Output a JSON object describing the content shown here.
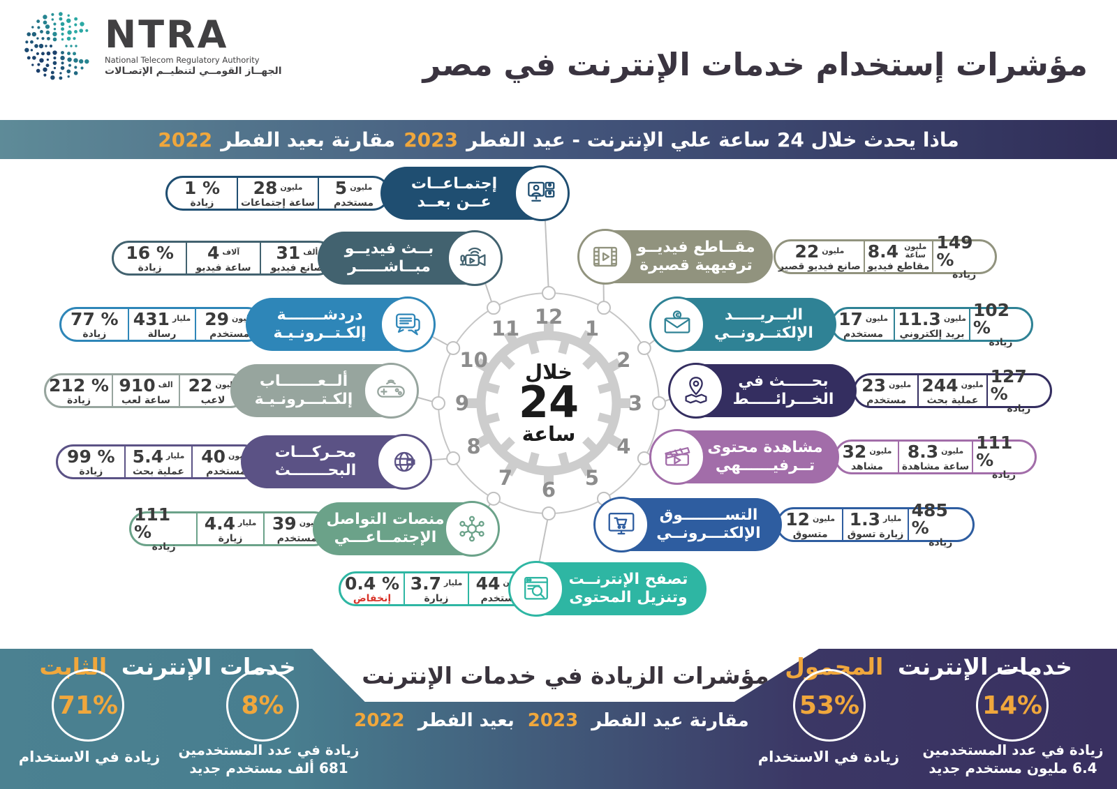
{
  "logo": {
    "name": "NTRA",
    "subtitle_en": "National Telecom Regulatory Authority",
    "subtitle_ar": "الجهــاز القومــي لتنظيــم الإتصـالات"
  },
  "header": {
    "title": "مؤشرات إستخدام خدمات الإنترنت في مصر"
  },
  "banner": {
    "text_part1": "ماذا يحدث خلال 24 ساعة علي الإنترنت - عيد الفطر",
    "year_2023": "2023",
    "text_part2": "مقارنة بعيد الفطر",
    "year_2022": "2022"
  },
  "clock": {
    "label_top": "خلال",
    "label_value": "24",
    "label_bottom": "ساعة",
    "hours": [
      "1",
      "2",
      "3",
      "4",
      "5",
      "6",
      "7",
      "8",
      "9",
      "10",
      "11",
      "12"
    ]
  },
  "colors": {
    "accent_orange": "#f0a73c",
    "decrease_red": "#d8342a",
    "line_gray": "#c0c0c0",
    "banner_gradient": [
      "#5e8b98",
      "#302d58"
    ],
    "footer_gradient": [
      "#4b8191",
      "#393060"
    ]
  },
  "services": [
    {
      "id": "remote-meetings",
      "icon": "video-conference-icon",
      "color": "#1f4e71",
      "label_line1": "إجتمـاعــات",
      "label_line2": "عــن بعــد",
      "stats": [
        {
          "value": "5",
          "unit": "مليون",
          "label": "مستخدم"
        },
        {
          "value": "28",
          "unit": "مليون",
          "label": "ساعة إجتماعات"
        },
        {
          "value": "1 %",
          "label": "زيادة"
        }
      ]
    },
    {
      "id": "live-video-streaming",
      "icon": "live-stream-icon",
      "color": "#42626f",
      "label_line1": "بــث فيديــو",
      "label_line2": "مبــاشـــــر",
      "stats": [
        {
          "value": "31",
          "unit": "ألف",
          "label": "صانع فيديو"
        },
        {
          "value": "4",
          "unit": "آلاف",
          "label": "ساعة فيديو"
        },
        {
          "value": "16 %",
          "label": "زيادة"
        }
      ]
    },
    {
      "id": "online-chat",
      "icon": "chat-icon",
      "color": "#2e86b8",
      "label_line1": "دردشـــــــة",
      "label_line2": "إلكـتــرونـيـة",
      "stats": [
        {
          "value": "29",
          "unit": "مليون",
          "label": "مستخدم"
        },
        {
          "value": "431",
          "unit": "مليار",
          "label": "رسالة"
        },
        {
          "value": "77 %",
          "label": "زيادة"
        }
      ]
    },
    {
      "id": "online-games",
      "icon": "gamepad-icon",
      "color": "#97a59e",
      "label_line1": "ألــعـــــــاب",
      "label_line2": "إلكـتـــرونـيـة",
      "stats": [
        {
          "value": "22",
          "unit": "مليون",
          "label": "لاعب"
        },
        {
          "value": "910",
          "unit": "الف",
          "label": "ساعة لعب"
        },
        {
          "value": "212 %",
          "label": "زيادة"
        }
      ]
    },
    {
      "id": "search-engines",
      "icon": "globe-search-icon",
      "color": "#5b5285",
      "label_line1": "محـركـــات",
      "label_line2": "البحـــــــث",
      "stats": [
        {
          "value": "40",
          "unit": "مليون",
          "label": "مستخدم"
        },
        {
          "value": "5.4",
          "unit": "مليار",
          "label": "عملية بحث"
        },
        {
          "value": "99 %",
          "label": "زيادة"
        }
      ]
    },
    {
      "id": "social-media",
      "icon": "social-network-icon",
      "color": "#6ba289",
      "label_line1": "منصات التواصل",
      "label_line2": "الإجتمــاعـــي",
      "stats": [
        {
          "value": "39",
          "unit": "مليون",
          "label": "مستخدم"
        },
        {
          "value": "4.4",
          "unit": "مليار",
          "label": "زيارة"
        },
        {
          "value": "111 %",
          "label": "زيادة"
        }
      ]
    },
    {
      "id": "short-videos",
      "icon": "film-strip-icon",
      "color": "#91937e",
      "label_line1": "مقــاطع فيديــو",
      "label_line2": "ترفيهية قصيرة",
      "stats": [
        {
          "value": "22",
          "unit": "مليون",
          "label": "صانع فيديو قصير"
        },
        {
          "value": "8.4",
          "unit": "مليون ساعة",
          "label": "مقاطع فيديو"
        },
        {
          "value": "149 %",
          "label": "زيادة"
        }
      ]
    },
    {
      "id": "email",
      "icon": "email-icon",
      "color": "#2f8295",
      "label_line1": "البــريـــــد",
      "label_line2": "الإلكتــرونــي",
      "stats": [
        {
          "value": "17",
          "unit": "مليون",
          "label": "مستخدم"
        },
        {
          "value": "11.3",
          "unit": "مليون",
          "label": "بريد إلكتروني"
        },
        {
          "value": "102 %",
          "label": "زيادة"
        }
      ]
    },
    {
      "id": "maps-search",
      "icon": "map-pin-icon",
      "color": "#342e60",
      "label_line1": "بحـــــث في",
      "label_line2": "الخـــرائـــــط",
      "stats": [
        {
          "value": "23",
          "unit": "مليون",
          "label": "مستخدم"
        },
        {
          "value": "244",
          "unit": "مليون",
          "label": "عملية بحث"
        },
        {
          "value": "127 %",
          "label": "زيادة"
        }
      ]
    },
    {
      "id": "entertainment-content",
      "icon": "clapperboard-icon",
      "color": "#a26da9",
      "label_line1": "مشاهدة محتوى",
      "label_line2": "تــرفيــــــهي",
      "stats": [
        {
          "value": "32",
          "unit": "مليون",
          "label": "مشاهد"
        },
        {
          "value": "8.3",
          "unit": "مليون",
          "label": "ساعة مشاهدة"
        },
        {
          "value": "111 %",
          "label": "زيادة"
        }
      ]
    },
    {
      "id": "online-shopping",
      "icon": "shopping-cart-icon",
      "color": "#2e5da0",
      "label_line1": "التســــــــوق",
      "label_line2": "الإلكتـــرونــي",
      "stats": [
        {
          "value": "12",
          "unit": "مليون",
          "label": "متسوق"
        },
        {
          "value": "1.3",
          "unit": "مليار",
          "label": "زيارة تسوق"
        },
        {
          "value": "485 %",
          "label": "زيادة"
        }
      ]
    },
    {
      "id": "web-browsing",
      "icon": "browser-search-icon",
      "color": "#2eb6a3",
      "label_line1": "تصفح الإنترنــت",
      "label_line2": "وتنزيل المحتوى",
      "stats": [
        {
          "value": "44",
          "unit": "مليون",
          "label": "مستخدم"
        },
        {
          "value": "3.7",
          "unit": "مليار",
          "label": "زيارة"
        },
        {
          "value": "0.4 %",
          "label": "إنخفاض",
          "negative": true
        }
      ]
    }
  ],
  "footer": {
    "fixed": {
      "title": "خدمات الإنترنت",
      "highlight": "الثابت",
      "usage_value": "71%",
      "usage_caption": "زيادة في الاستخدام",
      "users_value": "8%",
      "users_caption_line1": "زيادة في عدد المستخدمين",
      "users_caption_line2": "681 ألف مستخدم جديد"
    },
    "middle": {
      "title": "مؤشرات الزيادة في خدمات الإنترنت",
      "compare_part1": "مقارنة عيد الفطر",
      "year_2023": "2023",
      "compare_part2": "بعيد الفطر",
      "year_2022": "2022"
    },
    "mobile": {
      "title": "خدمات الإنترنت",
      "highlight": "المحمول",
      "usage_value": "53%",
      "usage_caption": "زيادة في الاستخدام",
      "users_value": "14%",
      "users_caption_line1": "زيادة في عدد المستخدمين",
      "users_caption_line2": "6.4 مليون مستخدم جديد"
    }
  }
}
